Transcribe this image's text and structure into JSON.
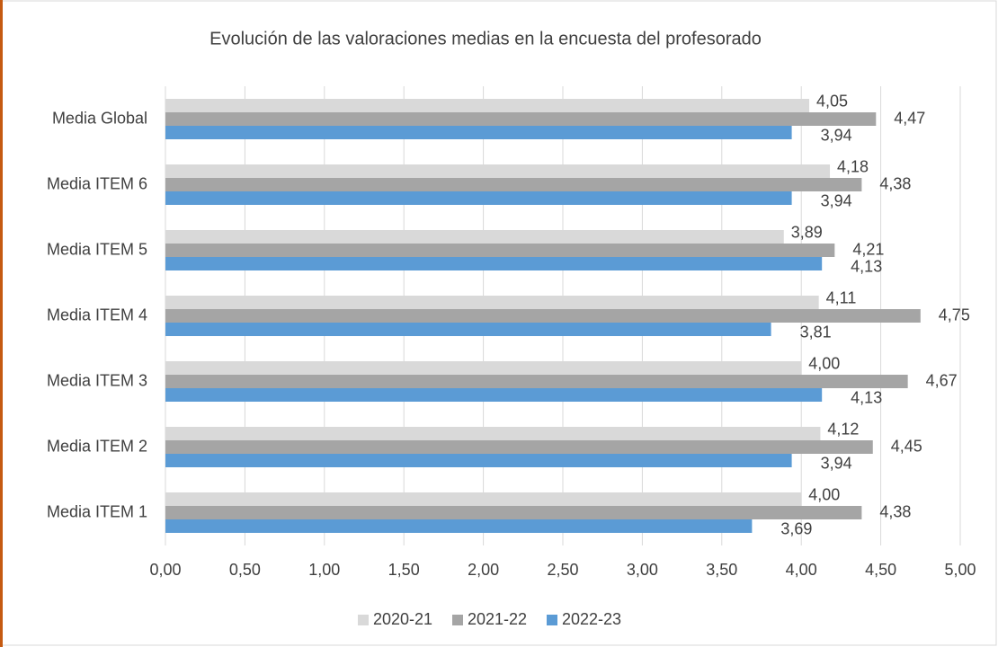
{
  "chart_data": {
    "type": "bar",
    "orientation": "horizontal",
    "title": "Evolución de las valoraciones medias en la encuesta del profesorado",
    "categories": [
      "Media ITEM 1",
      "Media ITEM 2",
      "Media ITEM 3",
      "Media ITEM 4",
      "Media ITEM 5",
      "Media ITEM 6",
      "Media Global"
    ],
    "series": [
      {
        "name": "2020-21",
        "color": "#d9d9d9",
        "values": [
          4.0,
          4.12,
          4.0,
          4.11,
          3.89,
          4.18,
          4.05
        ],
        "value_labels": [
          "4,00",
          "4,12",
          "4,00",
          "4,11",
          "3,89",
          "4,18",
          "4,05"
        ]
      },
      {
        "name": "2021-22",
        "color": "#a5a5a5",
        "values": [
          4.38,
          4.45,
          4.67,
          4.75,
          4.21,
          4.38,
          4.47
        ],
        "value_labels": [
          "4,38",
          "4,45",
          "4,67",
          "4,75",
          "4,21",
          "4,38",
          "4,47"
        ]
      },
      {
        "name": "2022-23",
        "color": "#5b9bd5",
        "values": [
          3.69,
          3.94,
          4.13,
          3.81,
          4.13,
          3.94,
          3.94
        ],
        "value_labels": [
          "3,69",
          "3,94",
          "4,13",
          "3,81",
          "4,13",
          "3,94",
          "3,94"
        ]
      }
    ],
    "xlim": [
      0,
      5
    ],
    "xticks": [
      {
        "value": 0,
        "label": "0,00"
      },
      {
        "value": 0.5,
        "label": "0,50"
      },
      {
        "value": 1,
        "label": "1,00"
      },
      {
        "value": 1.5,
        "label": "1,50"
      },
      {
        "value": 2,
        "label": "2,00"
      },
      {
        "value": 2.5,
        "label": "2,50"
      },
      {
        "value": 3,
        "label": "3,00"
      },
      {
        "value": 3.5,
        "label": "3,50"
      },
      {
        "value": 4,
        "label": "4,00"
      },
      {
        "value": 4.5,
        "label": "4,50"
      },
      {
        "value": 5,
        "label": "5,00"
      }
    ],
    "grid": true,
    "legend": "bottom"
  }
}
